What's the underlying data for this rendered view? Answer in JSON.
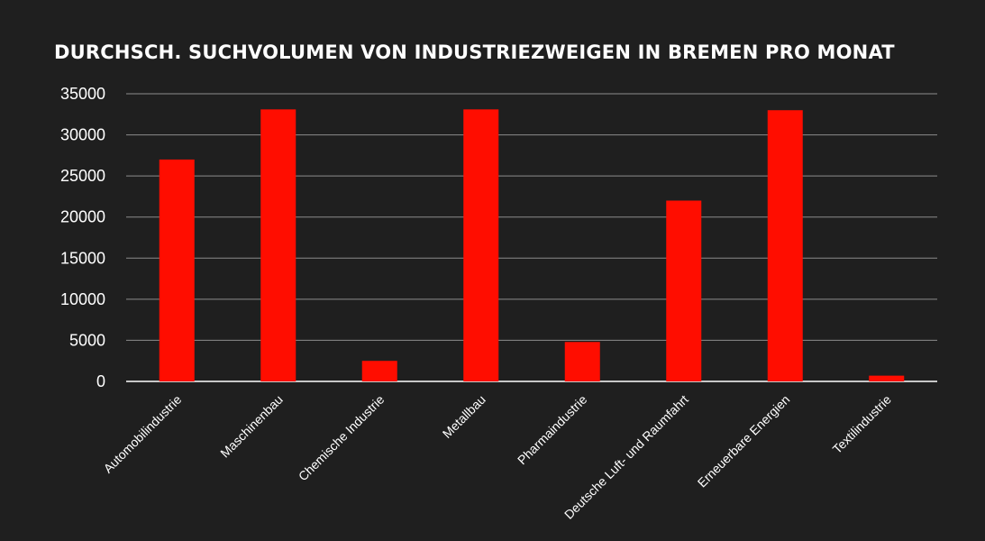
{
  "chart_data": {
    "type": "bar",
    "title": "DURCHSCH. SUCHVOLUMEN VON INDUSTRIEZWEIGEN IN BREMEN PRO MONAT",
    "categories": [
      "Automobilindustrie",
      "Maschinenbau",
      "Chemische Industrie",
      "Metallbau",
      "Pharmaindustrie",
      "Deutsche Luft- und Raumfahrt",
      "Erneuerbare Energien",
      "Textilindustrie"
    ],
    "values": [
      27000,
      33100,
      2500,
      33100,
      4800,
      22000,
      33000,
      700
    ],
    "yticks": [
      "0",
      "5000",
      "10000",
      "15000",
      "20000",
      "25000",
      "30000",
      "35000"
    ],
    "ylim": [
      0,
      35000
    ],
    "grid": true,
    "legend": "none",
    "colors": {
      "bar": "#ff0d00",
      "background": "#1f1f1f",
      "grid": "#8c8c8c",
      "text": "#ffffff"
    }
  }
}
